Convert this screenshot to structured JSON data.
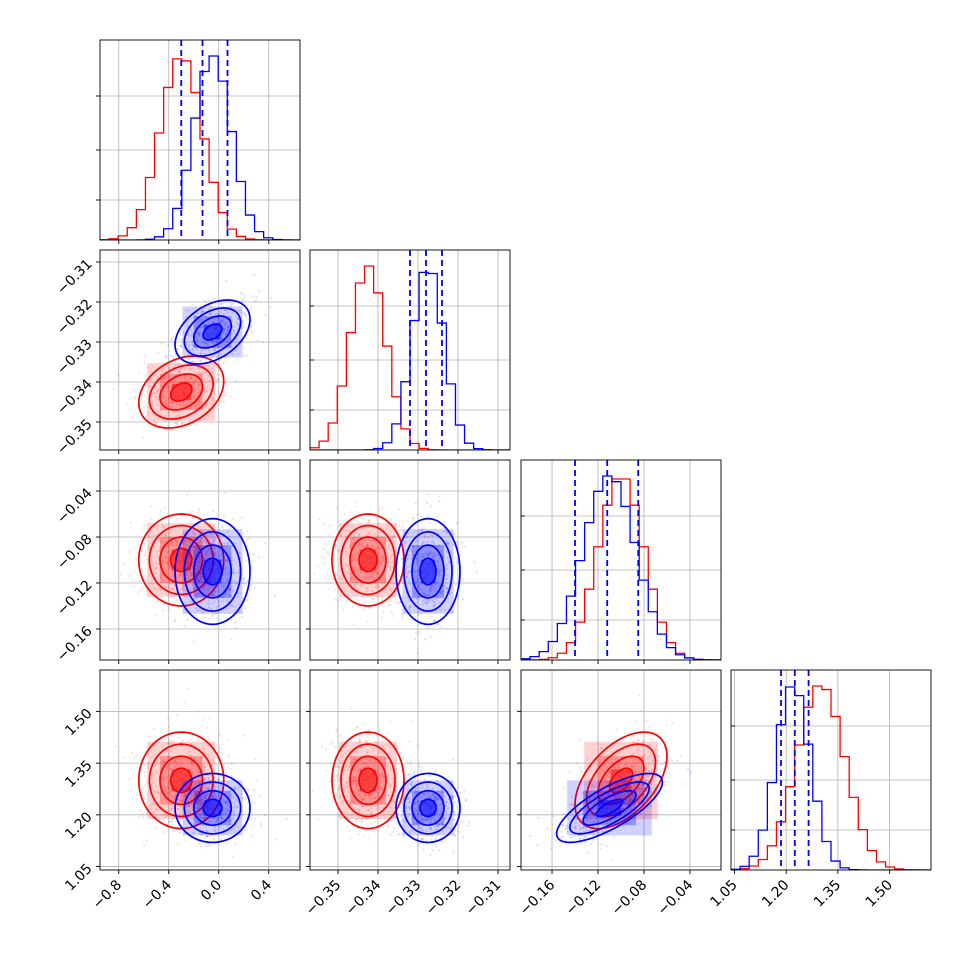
{
  "chart_data": {
    "type": "corner",
    "n_params": 4,
    "colors": {
      "sample_a": "#ff0000",
      "sample_b": "#0000ff",
      "quantile_lines": "#0000ff"
    },
    "axes": [
      {
        "range": [
          -0.95,
          0.65
        ],
        "ticks": [
          -0.8,
          -0.4,
          0.0,
          0.4
        ],
        "tick_labels": [
          "−0.8",
          "−0.4",
          "0.0",
          "0.4"
        ]
      },
      {
        "range": [
          -0.357,
          -0.307
        ],
        "ticks": [
          -0.35,
          -0.34,
          -0.33,
          -0.32,
          -0.31
        ],
        "tick_labels": [
          "−0.35",
          "−0.34",
          "−0.33",
          "−0.32",
          "−0.31"
        ]
      },
      {
        "range": [
          -0.187,
          -0.013
        ],
        "ticks": [
          -0.16,
          -0.12,
          -0.08,
          -0.04
        ],
        "tick_labels": [
          "−0.16",
          "−0.12",
          "−0.08",
          "−0.04"
        ]
      },
      {
        "range": [
          1.04,
          1.62
        ],
        "ticks": [
          1.05,
          1.2,
          1.35,
          1.5
        ],
        "tick_labels": [
          "1.05",
          "1.20",
          "1.35",
          "1.50"
        ]
      }
    ],
    "samples": [
      {
        "color": "#ff0000",
        "means": [
          -0.3,
          -0.3425,
          -0.1,
          1.3
        ],
        "sds": [
          0.17,
          0.0045,
          0.02,
          0.07
        ],
        "corr": [
          [
            0,
            1,
            0.3
          ],
          [
            0,
            2,
            0.0
          ],
          [
            0,
            3,
            0.0
          ],
          [
            1,
            2,
            0.0
          ],
          [
            1,
            3,
            0.0
          ],
          [
            2,
            3,
            0.5
          ]
        ]
      },
      {
        "color": "#0000ff",
        "means": [
          -0.05,
          -0.3275,
          -0.11,
          1.22
        ],
        "sds": [
          0.15,
          0.004,
          0.023,
          0.05
        ],
        "corr": [
          [
            0,
            1,
            0.4
          ],
          [
            0,
            2,
            0.0
          ],
          [
            0,
            3,
            0.0
          ],
          [
            1,
            2,
            0.0
          ],
          [
            1,
            3,
            0.0
          ],
          [
            2,
            3,
            0.75
          ]
        ]
      }
    ],
    "quantile_lines": [
      [
        -0.3,
        -0.13,
        0.07
      ],
      [
        -0.332,
        -0.328,
        -0.324
      ],
      [
        -0.14,
        -0.112,
        -0.085
      ],
      [
        1.185,
        1.225,
        1.265
      ]
    ]
  }
}
